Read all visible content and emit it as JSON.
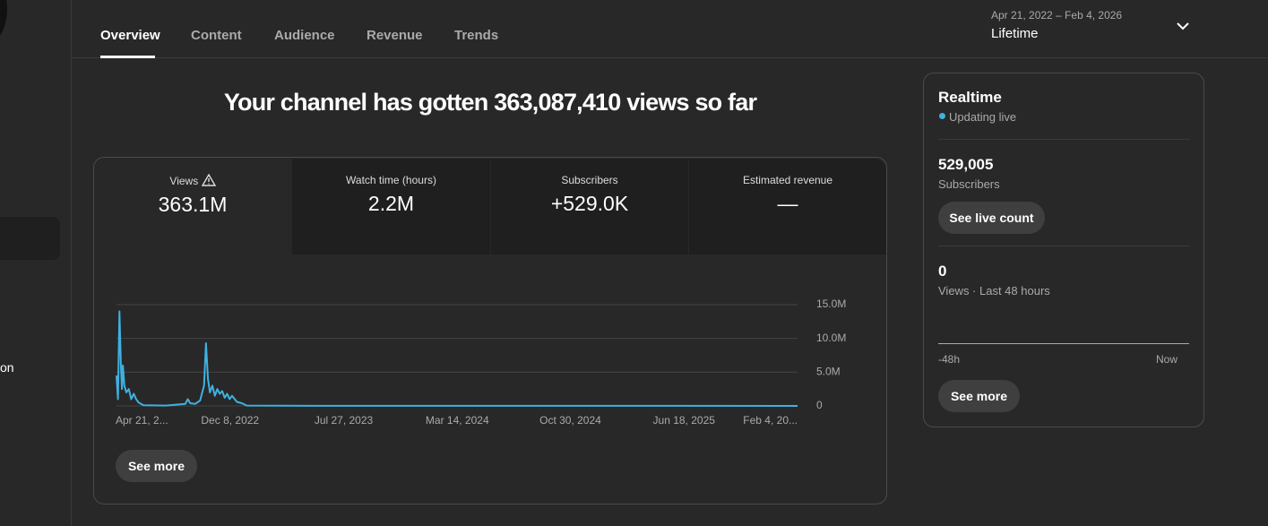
{
  "sidebar": {
    "item_text": "on"
  },
  "tabs": [
    "Overview",
    "Content",
    "Audience",
    "Revenue",
    "Trends"
  ],
  "date_range": {
    "range": "Apr 21, 2022 – Feb 4, 2026",
    "label": "Lifetime"
  },
  "headline": "Your channel has gotten 363,087,410 views so far",
  "metrics": [
    {
      "label": "Views",
      "value": "363.1M"
    },
    {
      "label": "Watch time (hours)",
      "value": "2.2M"
    },
    {
      "label": "Subscribers",
      "value": "+529.0K"
    },
    {
      "label": "Estimated revenue",
      "value": "—"
    }
  ],
  "chart_data": {
    "type": "line",
    "x": [
      "2022-04-21",
      "2022-04-24",
      "2022-04-27",
      "2022-04-30",
      "2022-05-02",
      "2022-05-04",
      "2022-05-07",
      "2022-05-11",
      "2022-05-16",
      "2022-05-21",
      "2022-05-26",
      "2022-05-31",
      "2022-06-05",
      "2022-06-15",
      "2022-07-30",
      "2022-09-08",
      "2022-09-13",
      "2022-09-18",
      "2022-09-28",
      "2022-10-08",
      "2022-10-16",
      "2022-10-20",
      "2022-10-24",
      "2022-10-28",
      "2022-11-02",
      "2022-11-07",
      "2022-11-12",
      "2022-11-17",
      "2022-11-22",
      "2022-11-27",
      "2022-12-02",
      "2022-12-07",
      "2022-12-12",
      "2022-12-22",
      "2023-01-01",
      "2023-01-11",
      "2023-06-01",
      "2024-06-01",
      "2025-06-01",
      "2026-02-04"
    ],
    "series": [
      {
        "name": "Views",
        "color": "#3fb1e0",
        "values": [
          4500000,
          1000000,
          14000000,
          6000000,
          2500000,
          6000000,
          3000000,
          2000000,
          2500000,
          1000000,
          1800000,
          1000000,
          500000,
          100000,
          50000,
          300000,
          1000000,
          400000,
          300000,
          800000,
          3000000,
          9300000,
          4000000,
          2000000,
          3000000,
          1500000,
          2500000,
          1800000,
          2200000,
          1200000,
          1800000,
          1000000,
          1500000,
          600000,
          400000,
          50000,
          20000,
          10000,
          10000,
          0
        ]
      }
    ],
    "xlim": [
      "2022-04-21",
      "2026-02-04"
    ],
    "xticks": [
      {
        "value": "2022-04-21",
        "label": "Apr 21, 2..."
      },
      {
        "value": "2022-12-08",
        "label": "Dec 8, 2022"
      },
      {
        "value": "2023-07-27",
        "label": "Jul 27, 2023"
      },
      {
        "value": "2024-03-14",
        "label": "Mar 14, 2024"
      },
      {
        "value": "2024-10-30",
        "label": "Oct 30, 2024"
      },
      {
        "value": "2025-06-18",
        "label": "Jun 18, 2025"
      },
      {
        "value": "2026-02-04",
        "label": "Feb 4, 20..."
      }
    ],
    "ylim": [
      0,
      15000000
    ],
    "yticks": [
      0,
      {
        "value": 5000000,
        "label": "5.0M"
      },
      {
        "value": 10000000,
        "label": "10.0M"
      },
      {
        "value": 15000000,
        "label": "15.0M"
      }
    ],
    "grid": true
  },
  "chart_button": "See more",
  "realtime": {
    "title": "Realtime",
    "status": "Updating live",
    "subscribers_count": "529,005",
    "subscribers_label": "Subscribers",
    "live_count_button": "See live count",
    "views_count": "0",
    "views_label": "Views · Last 48 hours",
    "axis_start": "-48h",
    "axis_end": "Now",
    "button": "See more"
  }
}
